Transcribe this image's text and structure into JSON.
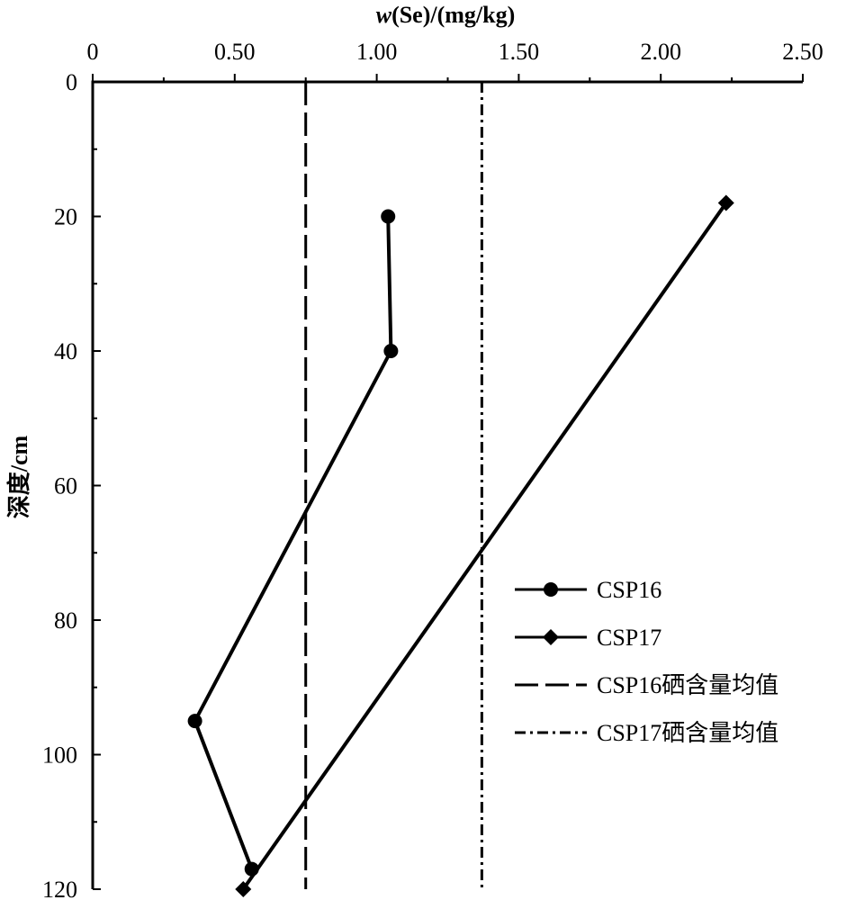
{
  "chart_data": {
    "type": "line",
    "x_axis_title": {
      "italic": "w",
      "rest": "(Se)/(mg/kg)"
    },
    "y_axis_title": "深度/cm",
    "x_axis_position": "top",
    "y_axis_inverted": true,
    "xlim": [
      0,
      2.5
    ],
    "ylim": [
      0,
      120
    ],
    "x_ticks": [
      "0",
      "0.50",
      "1.00",
      "1.50",
      "2.00",
      "2.50"
    ],
    "x_tick_values": [
      0,
      0.5,
      1.0,
      1.5,
      2.0,
      2.5
    ],
    "y_ticks": [
      "0",
      "20",
      "40",
      "60",
      "80",
      "100",
      "120"
    ],
    "y_tick_values": [
      0,
      20,
      40,
      60,
      80,
      100,
      120
    ],
    "grid": false,
    "legend_position": "right",
    "series": [
      {
        "name": "CSP16",
        "marker": "circle",
        "style": "solid",
        "points": [
          {
            "x": 1.04,
            "y": 20
          },
          {
            "x": 1.05,
            "y": 40
          },
          {
            "x": 0.36,
            "y": 95
          },
          {
            "x": 0.56,
            "y": 117
          }
        ]
      },
      {
        "name": "CSP17",
        "marker": "diamond",
        "style": "solid",
        "points": [
          {
            "x": 2.23,
            "y": 18
          },
          {
            "x": 0.53,
            "y": 120
          }
        ]
      }
    ],
    "reference_lines": [
      {
        "name": "CSP16硒含量均值",
        "x": 0.75,
        "style": "dashed"
      },
      {
        "name": "CSP17硒含量均值",
        "x": 1.37,
        "style": "dashdot"
      }
    ],
    "colors": {
      "line": "#000000",
      "background": "#ffffff"
    }
  }
}
